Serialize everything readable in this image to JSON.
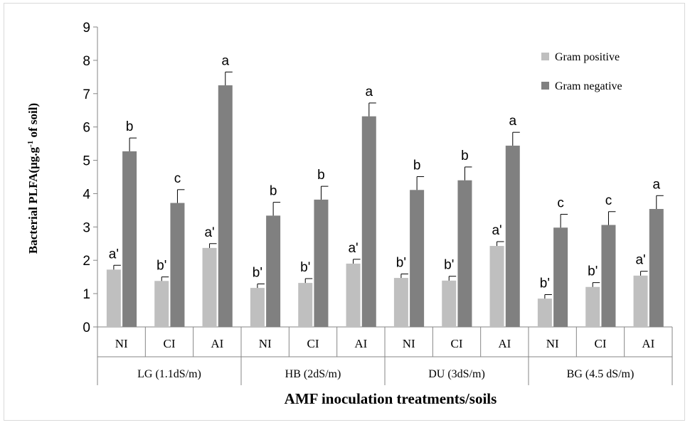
{
  "chart_data": {
    "type": "bar",
    "ylabel": "Bacterial PLFA(µg.g-1 of soil)",
    "ylabel_parts": {
      "main": "Bacterial PLFA(µg.g",
      "sup": "-1",
      "tail": " of soil)"
    },
    "xlabel": "AMF inoculation treatments/soils",
    "ylim": [
      0,
      9
    ],
    "yticks": [
      "0",
      "1",
      "2",
      "3",
      "4",
      "5",
      "6",
      "7",
      "8",
      "9"
    ],
    "grid": false,
    "legend_position": "top-right",
    "categories": [
      "NI",
      "CI",
      "AI",
      "NI",
      "CI",
      "AI",
      "NI",
      "CI",
      "AI",
      "NI",
      "CI",
      "AI"
    ],
    "groups": [
      "LG (1.1dS/m)",
      "HB (2dS/m)",
      "DU (3dS/m)",
      "BG (4.5 dS/m)"
    ],
    "series": [
      {
        "name": "Gram positive",
        "color": "#bfbfbf",
        "values": [
          1.72,
          1.38,
          2.37,
          1.17,
          1.32,
          1.9,
          1.47,
          1.39,
          2.43,
          0.85,
          1.2,
          1.54
        ],
        "errors": [
          0.13,
          0.12,
          0.13,
          0.12,
          0.13,
          0.13,
          0.12,
          0.13,
          0.13,
          0.12,
          0.13,
          0.13
        ],
        "labels": [
          "a'",
          "b'",
          "a'",
          "b'",
          "b'",
          "a'",
          "b'",
          "b'",
          "a'",
          "b'",
          "b'",
          "a'"
        ]
      },
      {
        "name": "Gram negative",
        "color": "#808080",
        "values": [
          5.27,
          3.72,
          7.25,
          3.34,
          3.82,
          6.32,
          4.11,
          4.4,
          5.44,
          2.98,
          3.06,
          3.54
        ],
        "errors": [
          0.4,
          0.4,
          0.4,
          0.4,
          0.4,
          0.4,
          0.4,
          0.4,
          0.4,
          0.4,
          0.4,
          0.4
        ],
        "labels": [
          "b",
          "c",
          "a",
          "b",
          "b",
          "a",
          "b",
          "b",
          "a",
          "c",
          "c",
          "a"
        ]
      }
    ]
  }
}
